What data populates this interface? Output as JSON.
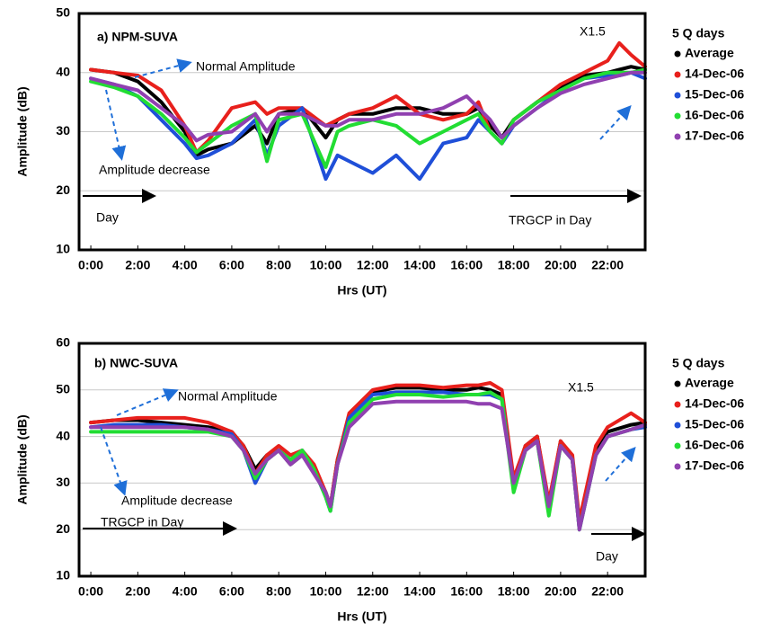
{
  "chart_data": [
    {
      "type": "line",
      "title": "a)  NPM-SUVA",
      "x_label": "Hrs (UT)",
      "y_label": "Amplitude (dB)",
      "legend_title": "5 Q days",
      "annotations": [
        "Normal Amplitude",
        "Amplitude decrease",
        "Day",
        "TRGCP in Day",
        "X1.5"
      ],
      "xlim": [
        -0.5,
        23.6
      ],
      "ylim": [
        10,
        50
      ],
      "yticks": [
        10,
        20,
        30,
        40,
        50
      ],
      "grid": true,
      "xticks": [
        {
          "value": 0,
          "label": "0:00"
        },
        {
          "value": 2,
          "label": "2:00"
        },
        {
          "value": 4,
          "label": "4:00"
        },
        {
          "value": 6,
          "label": "6:00"
        },
        {
          "value": 8,
          "label": "8:00"
        },
        {
          "value": 10,
          "label": "10:00"
        },
        {
          "value": 12,
          "label": "12:00"
        },
        {
          "value": 14,
          "label": "14:00"
        },
        {
          "value": 16,
          "label": "16:00"
        },
        {
          "value": 18,
          "label": "18:00"
        },
        {
          "value": 20,
          "label": "20:00"
        },
        {
          "value": 22,
          "label": "22:00"
        }
      ],
      "x": [
        0,
        1,
        2,
        3,
        4,
        4.5,
        5,
        6,
        7,
        7.5,
        8,
        9,
        10,
        10.5,
        11,
        12,
        13,
        14,
        15,
        16,
        16.5,
        17,
        17.5,
        18,
        19,
        20,
        21,
        22,
        22.5,
        23,
        23.6
      ],
      "series": [
        {
          "name": "Average",
          "color": "#000000",
          "values": [
            40.5,
            40,
            38.5,
            35,
            30,
            26,
            27,
            28,
            31,
            28,
            33,
            34,
            29,
            32,
            33,
            33,
            34,
            34,
            33,
            33,
            34,
            31,
            29,
            32,
            35,
            37.5,
            39.5,
            40,
            40.5,
            41,
            40.5
          ]
        },
        {
          "name": "14-Dec-06",
          "color": "#e8201c",
          "values": [
            40.5,
            40,
            39.5,
            37,
            31,
            26.5,
            28.5,
            34,
            35,
            33,
            34,
            34,
            31,
            32,
            33,
            34,
            36,
            33,
            32,
            33,
            35,
            30,
            28,
            32,
            35,
            38,
            40,
            42,
            45,
            43,
            41
          ]
        },
        {
          "name": "15-Dec-06",
          "color": "#1f4fd8",
          "values": [
            39,
            38,
            36,
            32,
            28,
            25.5,
            26,
            28,
            32,
            26,
            31,
            34,
            22,
            26,
            25,
            23,
            26,
            22,
            28,
            29,
            32,
            30,
            28,
            31,
            34,
            37,
            39,
            39.5,
            39.5,
            40,
            39
          ]
        },
        {
          "name": "16-Dec-06",
          "color": "#22dd33",
          "values": [
            38.5,
            37.5,
            36,
            33,
            29,
            26.5,
            28,
            31,
            33,
            25,
            32,
            33,
            24,
            30,
            31,
            32,
            31,
            28,
            30,
            32,
            33,
            30,
            28,
            32,
            35,
            37,
            39,
            40,
            40,
            40,
            40.5
          ]
        },
        {
          "name": "17-Dec-06",
          "color": "#9040b0",
          "values": [
            39,
            38,
            37,
            34,
            31,
            28.5,
            29.5,
            30,
            33,
            30,
            33,
            33,
            31,
            31,
            32,
            32,
            33,
            33,
            34,
            36,
            34,
            32,
            29,
            31,
            34,
            36.5,
            38,
            39,
            39.5,
            40,
            40
          ]
        }
      ]
    },
    {
      "type": "line",
      "title": "b) NWC-SUVA",
      "x_label": "Hrs (UT)",
      "y_label": "Amplitude (dB)",
      "legend_title": "5 Q days",
      "annotations": [
        "Normal Amplitude",
        "Amplitude decrease",
        "TRGCP in Day",
        "Day",
        "X1.5"
      ],
      "xlim": [
        -0.5,
        23.6
      ],
      "ylim": [
        10,
        60
      ],
      "yticks": [
        10,
        20,
        30,
        40,
        50,
        60
      ],
      "grid": true,
      "xticks": [
        {
          "value": 0,
          "label": "0:00"
        },
        {
          "value": 2,
          "label": "2:00"
        },
        {
          "value": 4,
          "label": "4:00"
        },
        {
          "value": 6,
          "label": "6:00"
        },
        {
          "value": 8,
          "label": "8:00"
        },
        {
          "value": 10,
          "label": "10:00"
        },
        {
          "value": 12,
          "label": "12:00"
        },
        {
          "value": 14,
          "label": "14:00"
        },
        {
          "value": 16,
          "label": "16:00"
        },
        {
          "value": 18,
          "label": "18:00"
        },
        {
          "value": 20,
          "label": "20:00"
        },
        {
          "value": 22,
          "label": "22:00"
        }
      ],
      "x": [
        0,
        1,
        2,
        3,
        4,
        5,
        6,
        6.5,
        7,
        7.5,
        8,
        8.5,
        9,
        9.5,
        10,
        10.2,
        10.5,
        11,
        12,
        13,
        14,
        15,
        16,
        16.5,
        17,
        17.5,
        18,
        18.5,
        19,
        19.5,
        20,
        20.5,
        20.8,
        21.5,
        22,
        23,
        23.6
      ],
      "series": [
        {
          "name": "Average",
          "color": "#000000",
          "values": [
            43,
            43.5,
            43.5,
            43,
            42.5,
            42,
            41,
            38,
            33,
            36,
            37,
            34,
            36,
            33,
            28,
            25,
            35,
            44,
            49.5,
            50.5,
            50.5,
            50,
            50,
            50.5,
            50,
            49,
            30,
            38,
            40,
            25,
            39,
            35,
            21,
            37,
            41,
            42.5,
            43
          ]
        },
        {
          "name": "14-Dec-06",
          "color": "#e8201c",
          "values": [
            43,
            43.5,
            44,
            44,
            44,
            43,
            41,
            38,
            32,
            36,
            38,
            36,
            37,
            34,
            28,
            25,
            35,
            45,
            50,
            51,
            51,
            50.5,
            51,
            51,
            51.5,
            50,
            31,
            38,
            40,
            26,
            39,
            36,
            22,
            38,
            42,
            45,
            43
          ]
        },
        {
          "name": "15-Dec-06",
          "color": "#1f4fd8",
          "values": [
            42,
            42.5,
            42.5,
            42.5,
            42,
            41.5,
            40.5,
            37,
            30,
            35,
            37,
            35,
            37,
            33,
            27,
            24,
            34,
            44,
            49,
            49.5,
            49.5,
            49.5,
            49,
            49,
            49,
            48,
            29,
            37,
            39,
            24,
            38,
            35,
            20,
            36,
            40,
            41.5,
            42
          ]
        },
        {
          "name": "16-Dec-06",
          "color": "#22dd33",
          "values": [
            41,
            41,
            41,
            41,
            41,
            41,
            40,
            37,
            31,
            35,
            37,
            35,
            37,
            33,
            27,
            24,
            34,
            43,
            48,
            49,
            49,
            48.5,
            49,
            49,
            49.5,
            48,
            28,
            37,
            39,
            23,
            38,
            35,
            20,
            36,
            40,
            41.5,
            42.5
          ]
        },
        {
          "name": "17-Dec-06",
          "color": "#9040b0",
          "values": [
            42,
            42,
            42,
            42,
            42,
            41.5,
            40,
            37,
            32,
            35,
            37,
            34,
            36,
            32,
            28,
            25,
            34,
            42,
            47,
            47.5,
            47.5,
            47.5,
            47.5,
            47,
            47,
            46,
            30,
            37,
            39,
            25,
            38,
            35,
            20,
            36,
            40,
            41.5,
            42.5
          ]
        }
      ]
    }
  ]
}
